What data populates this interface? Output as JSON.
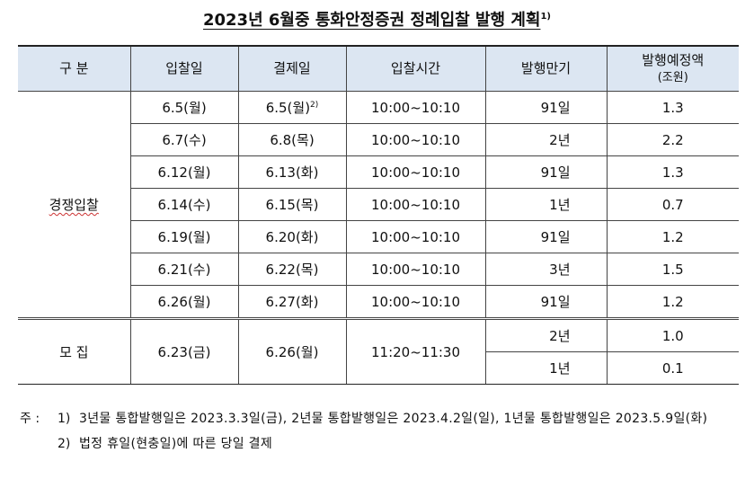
{
  "title": {
    "text": "2023년 6월중 통화안정증권 정례입찰 발행 계획",
    "note_mark": "1)"
  },
  "table": {
    "header": [
      "구 분",
      "입찰일",
      "결제일",
      "입찰시간",
      "발행만기",
      "발행예정액"
    ],
    "header_unit": "(조원)",
    "competitive": {
      "label": "경쟁입찰",
      "rows": [
        {
          "bid": "6.5(월)",
          "settle": "6.5(월)",
          "settle_note": "2)",
          "time": "10:00~10:10",
          "maturity": "91일",
          "amount": "1.3"
        },
        {
          "bid": "6.7(수)",
          "settle": "6.8(목)",
          "time": "10:00~10:10",
          "maturity": "2년",
          "amount": "2.2"
        },
        {
          "bid": "6.12(월)",
          "settle": "6.13(화)",
          "time": "10:00~10:10",
          "maturity": "91일",
          "amount": "1.3"
        },
        {
          "bid": "6.14(수)",
          "settle": "6.15(목)",
          "time": "10:00~10:10",
          "maturity": "1년",
          "amount": "0.7"
        },
        {
          "bid": "6.19(월)",
          "settle": "6.20(화)",
          "time": "10:00~10:10",
          "maturity": "91일",
          "amount": "1.2"
        },
        {
          "bid": "6.21(수)",
          "settle": "6.22(목)",
          "time": "10:00~10:10",
          "maturity": "3년",
          "amount": "1.5"
        },
        {
          "bid": "6.26(월)",
          "settle": "6.27(화)",
          "time": "10:00~10:10",
          "maturity": "91일",
          "amount": "1.2"
        }
      ]
    },
    "subscription": {
      "label": "모 집",
      "bid": "6.23(금)",
      "settle": "6.26(월)",
      "time": "11:20~11:30",
      "tranches": [
        {
          "maturity": "2년",
          "amount": "1.0"
        },
        {
          "maturity": "1년",
          "amount": "0.1"
        }
      ]
    }
  },
  "notes": {
    "prefix": "주 :",
    "items": [
      {
        "num": "1)",
        "text": "3년물 통합발행일은 2023.3.3일(금), 2년물 통합발행일은 2023.4.2일(일), 1년물 통합발행일은 2023.5.9일(화)"
      },
      {
        "num": "2)",
        "text": "법정 휴일(현충일)에 따른 당일 결제"
      }
    ]
  }
}
